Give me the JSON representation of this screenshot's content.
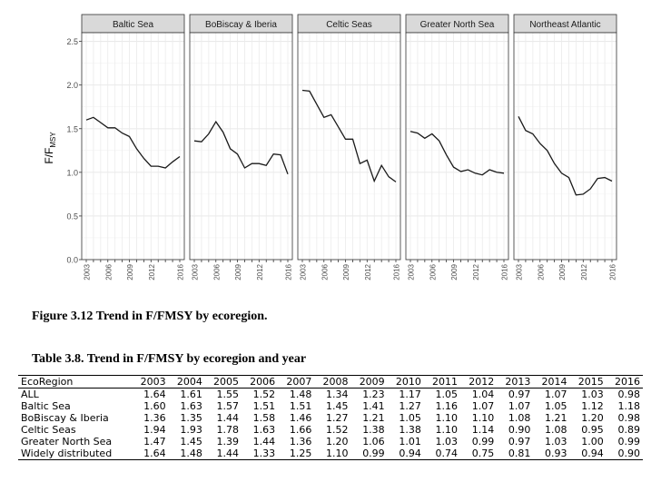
{
  "chart_data": {
    "type": "line",
    "ylabel_main": "F/F",
    "ylabel_sub": "MSY",
    "ylim": [
      0,
      2.6
    ],
    "yticks": [
      "0.0",
      "0.5",
      "1.0",
      "1.5",
      "2.0",
      "2.5"
    ],
    "xlim": [
      2003,
      2016
    ],
    "xticks": [
      "2003",
      "2006",
      "2009",
      "2012",
      "2016"
    ],
    "grid": true,
    "x": [
      2003,
      2004,
      2005,
      2006,
      2007,
      2008,
      2009,
      2010,
      2011,
      2012,
      2013,
      2014,
      2015,
      2016
    ],
    "panels": [
      {
        "name": "Baltic Sea",
        "values": [
          1.6,
          1.63,
          1.57,
          1.51,
          1.51,
          1.45,
          1.41,
          1.27,
          1.16,
          1.07,
          1.07,
          1.05,
          1.12,
          1.18
        ]
      },
      {
        "name": "BoBiscay & Iberia",
        "values": [
          1.36,
          1.35,
          1.44,
          1.58,
          1.46,
          1.27,
          1.21,
          1.05,
          1.1,
          1.1,
          1.08,
          1.21,
          1.2,
          0.98
        ]
      },
      {
        "name": "Celtic Seas",
        "values": [
          1.94,
          1.93,
          1.78,
          1.63,
          1.66,
          1.52,
          1.38,
          1.38,
          1.1,
          1.14,
          0.9,
          1.08,
          0.95,
          0.89
        ]
      },
      {
        "name": "Greater North Sea",
        "values": [
          1.47,
          1.45,
          1.39,
          1.44,
          1.36,
          1.2,
          1.06,
          1.01,
          1.03,
          0.99,
          0.97,
          1.03,
          1.0,
          0.99
        ]
      },
      {
        "name": "Northeast Atlantic",
        "values": [
          1.64,
          1.48,
          1.44,
          1.33,
          1.25,
          1.1,
          0.99,
          0.94,
          0.74,
          0.75,
          0.81,
          0.93,
          0.94,
          0.9
        ]
      }
    ]
  },
  "figure_caption": "Figure 3.12 Trend in F/FMSY by ecoregion.",
  "table_caption": "Table 3.8. Trend in F/FMSY by ecoregion and year",
  "table": {
    "headers": [
      "EcoRegion",
      "2003",
      "2004",
      "2005",
      "2006",
      "2007",
      "2008",
      "2009",
      "2010",
      "2011",
      "2012",
      "2013",
      "2014",
      "2015",
      "2016"
    ],
    "rows": [
      [
        "ALL",
        "1.64",
        "1.61",
        "1.55",
        "1.52",
        "1.48",
        "1.34",
        "1.23",
        "1.17",
        "1.05",
        "1.04",
        "0.97",
        "1.07",
        "1.03",
        "0.98"
      ],
      [
        "Baltic Sea",
        "1.60",
        "1.63",
        "1.57",
        "1.51",
        "1.51",
        "1.45",
        "1.41",
        "1.27",
        "1.16",
        "1.07",
        "1.07",
        "1.05",
        "1.12",
        "1.18"
      ],
      [
        "BoBiscay & Iberia",
        "1.36",
        "1.35",
        "1.44",
        "1.58",
        "1.46",
        "1.27",
        "1.21",
        "1.05",
        "1.10",
        "1.10",
        "1.08",
        "1.21",
        "1.20",
        "0.98"
      ],
      [
        "Celtic Seas",
        "1.94",
        "1.93",
        "1.78",
        "1.63",
        "1.66",
        "1.52",
        "1.38",
        "1.38",
        "1.10",
        "1.14",
        "0.90",
        "1.08",
        "0.95",
        "0.89"
      ],
      [
        "Greater North Sea",
        "1.47",
        "1.45",
        "1.39",
        "1.44",
        "1.36",
        "1.20",
        "1.06",
        "1.01",
        "1.03",
        "0.99",
        "0.97",
        "1.03",
        "1.00",
        "0.99"
      ],
      [
        "Widely distributed",
        "1.64",
        "1.48",
        "1.44",
        "1.33",
        "1.25",
        "1.10",
        "0.99",
        "0.94",
        "0.74",
        "0.75",
        "0.81",
        "0.93",
        "0.94",
        "0.90"
      ]
    ]
  }
}
